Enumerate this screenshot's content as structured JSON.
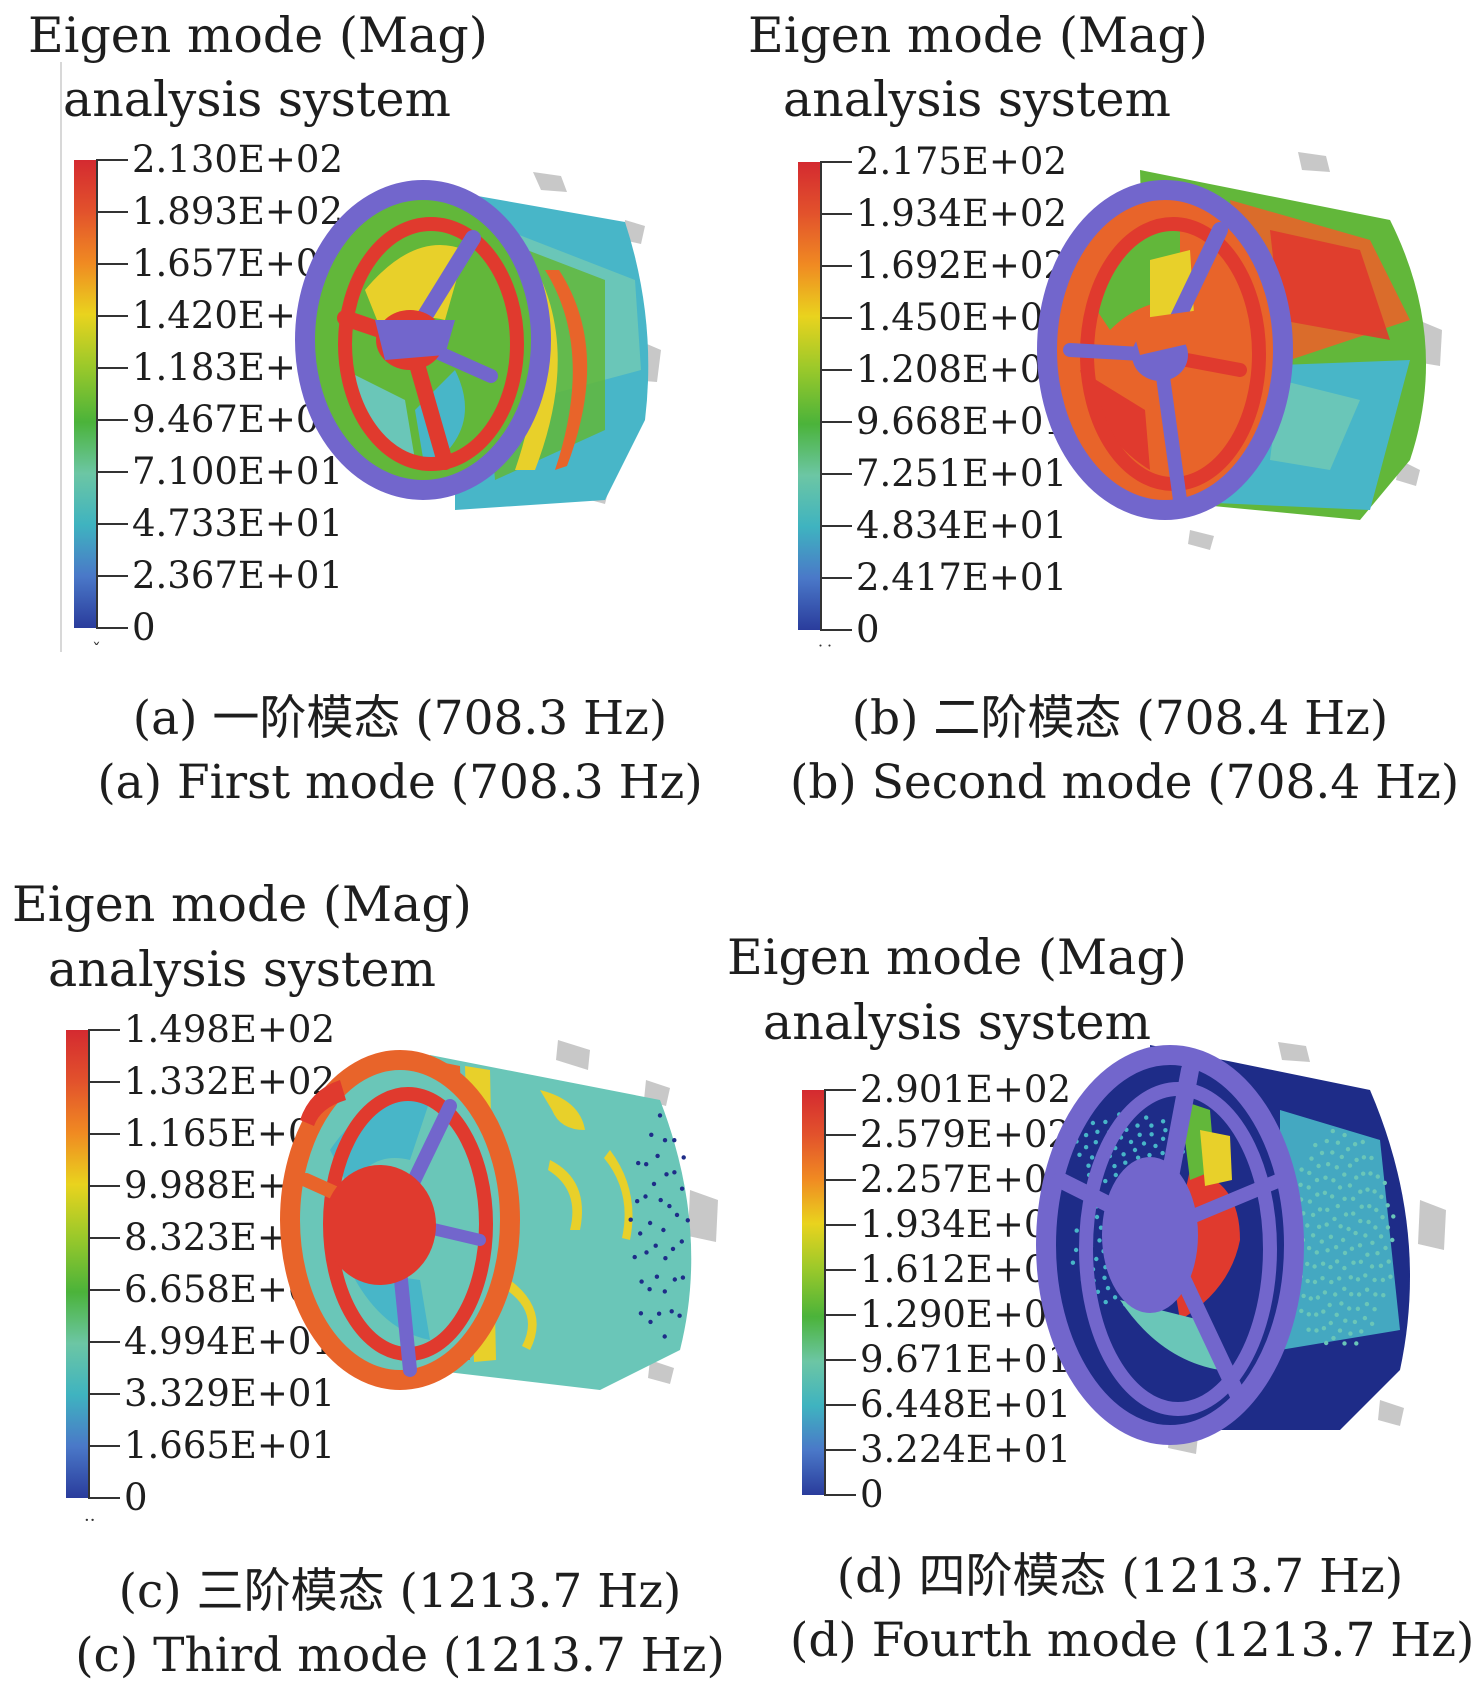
{
  "panels": [
    {
      "id": "a",
      "title_line1": "Eigen mode (Mag)",
      "title_line2": "analysis system",
      "legend_marker": "ˇ",
      "scale": [
        "2.130E+02",
        "1.893E+02",
        "1.657E+02",
        "1.420E+02",
        "1.183E+02",
        "9.467E+01",
        "7.100E+01",
        "4.733E+01",
        "2.367E+01",
        "0"
      ],
      "caption_cn": "(a) 一阶模态 (708.3 Hz)",
      "caption_en": "(a) First mode (708.3 Hz)"
    },
    {
      "id": "b",
      "title_line1": "Eigen mode (Mag)",
      "title_line2": "analysis system",
      "legend_marker": "˙˙",
      "scale": [
        "2.175E+02",
        "1.934E+02",
        "1.692E+02",
        "1.450E+02",
        "1.208E+02",
        "9.668E+01",
        "7.251E+01",
        "4.834E+01",
        "2.417E+01",
        "0"
      ],
      "caption_cn": "(b) 二阶模态 (708.4 Hz)",
      "caption_en": "(b) Second mode (708.4 Hz)"
    },
    {
      "id": "c",
      "title_line1": "Eigen mode (Mag)",
      "title_line2": "analysis system",
      "legend_marker": "··",
      "scale": [
        "1.498E+02",
        "1.332E+02",
        "1.165E+02",
        "9.988E+01",
        "8.323E+01",
        "6.658E+01",
        "4.994E+01",
        "3.329E+01",
        "1.665E+01",
        "0"
      ],
      "caption_cn": "(c) 三阶模态 (1213.7 Hz)",
      "caption_en": "(c) Third mode (1213.7 Hz)"
    },
    {
      "id": "d",
      "title_line1": "Eigen mode (Mag)",
      "title_line2": "analysis system",
      "legend_marker": "",
      "scale": [
        "2.901E+02",
        "2.579E+02",
        "2.257E+02",
        "1.934E+02",
        "1.612E+02",
        "1.290E+02",
        "9.671E+01",
        "6.448E+01",
        "3.224E+01",
        "0"
      ],
      "caption_cn": "(d) 四阶模态 (1213.7 Hz)",
      "caption_en": "(d) Fourth mode (1213.7 Hz)"
    }
  ],
  "colormap": [
    "#d42a30",
    "#e2522c",
    "#f08a22",
    "#e9d31e",
    "#9cc92a",
    "#4bb33a",
    "#6cc6a4",
    "#3fb3c0",
    "#4a78c8",
    "#2a3c9c"
  ],
  "model_colors": {
    "red": "#e03a2e",
    "orange": "#e8642a",
    "yellow": "#e8d02a",
    "green": "#62b73a",
    "teal": "#6ac6b8",
    "cyan": "#48b6c8",
    "purple": "#7266cc",
    "navy": "#1e2c88",
    "gray": "#c8c8c8"
  }
}
